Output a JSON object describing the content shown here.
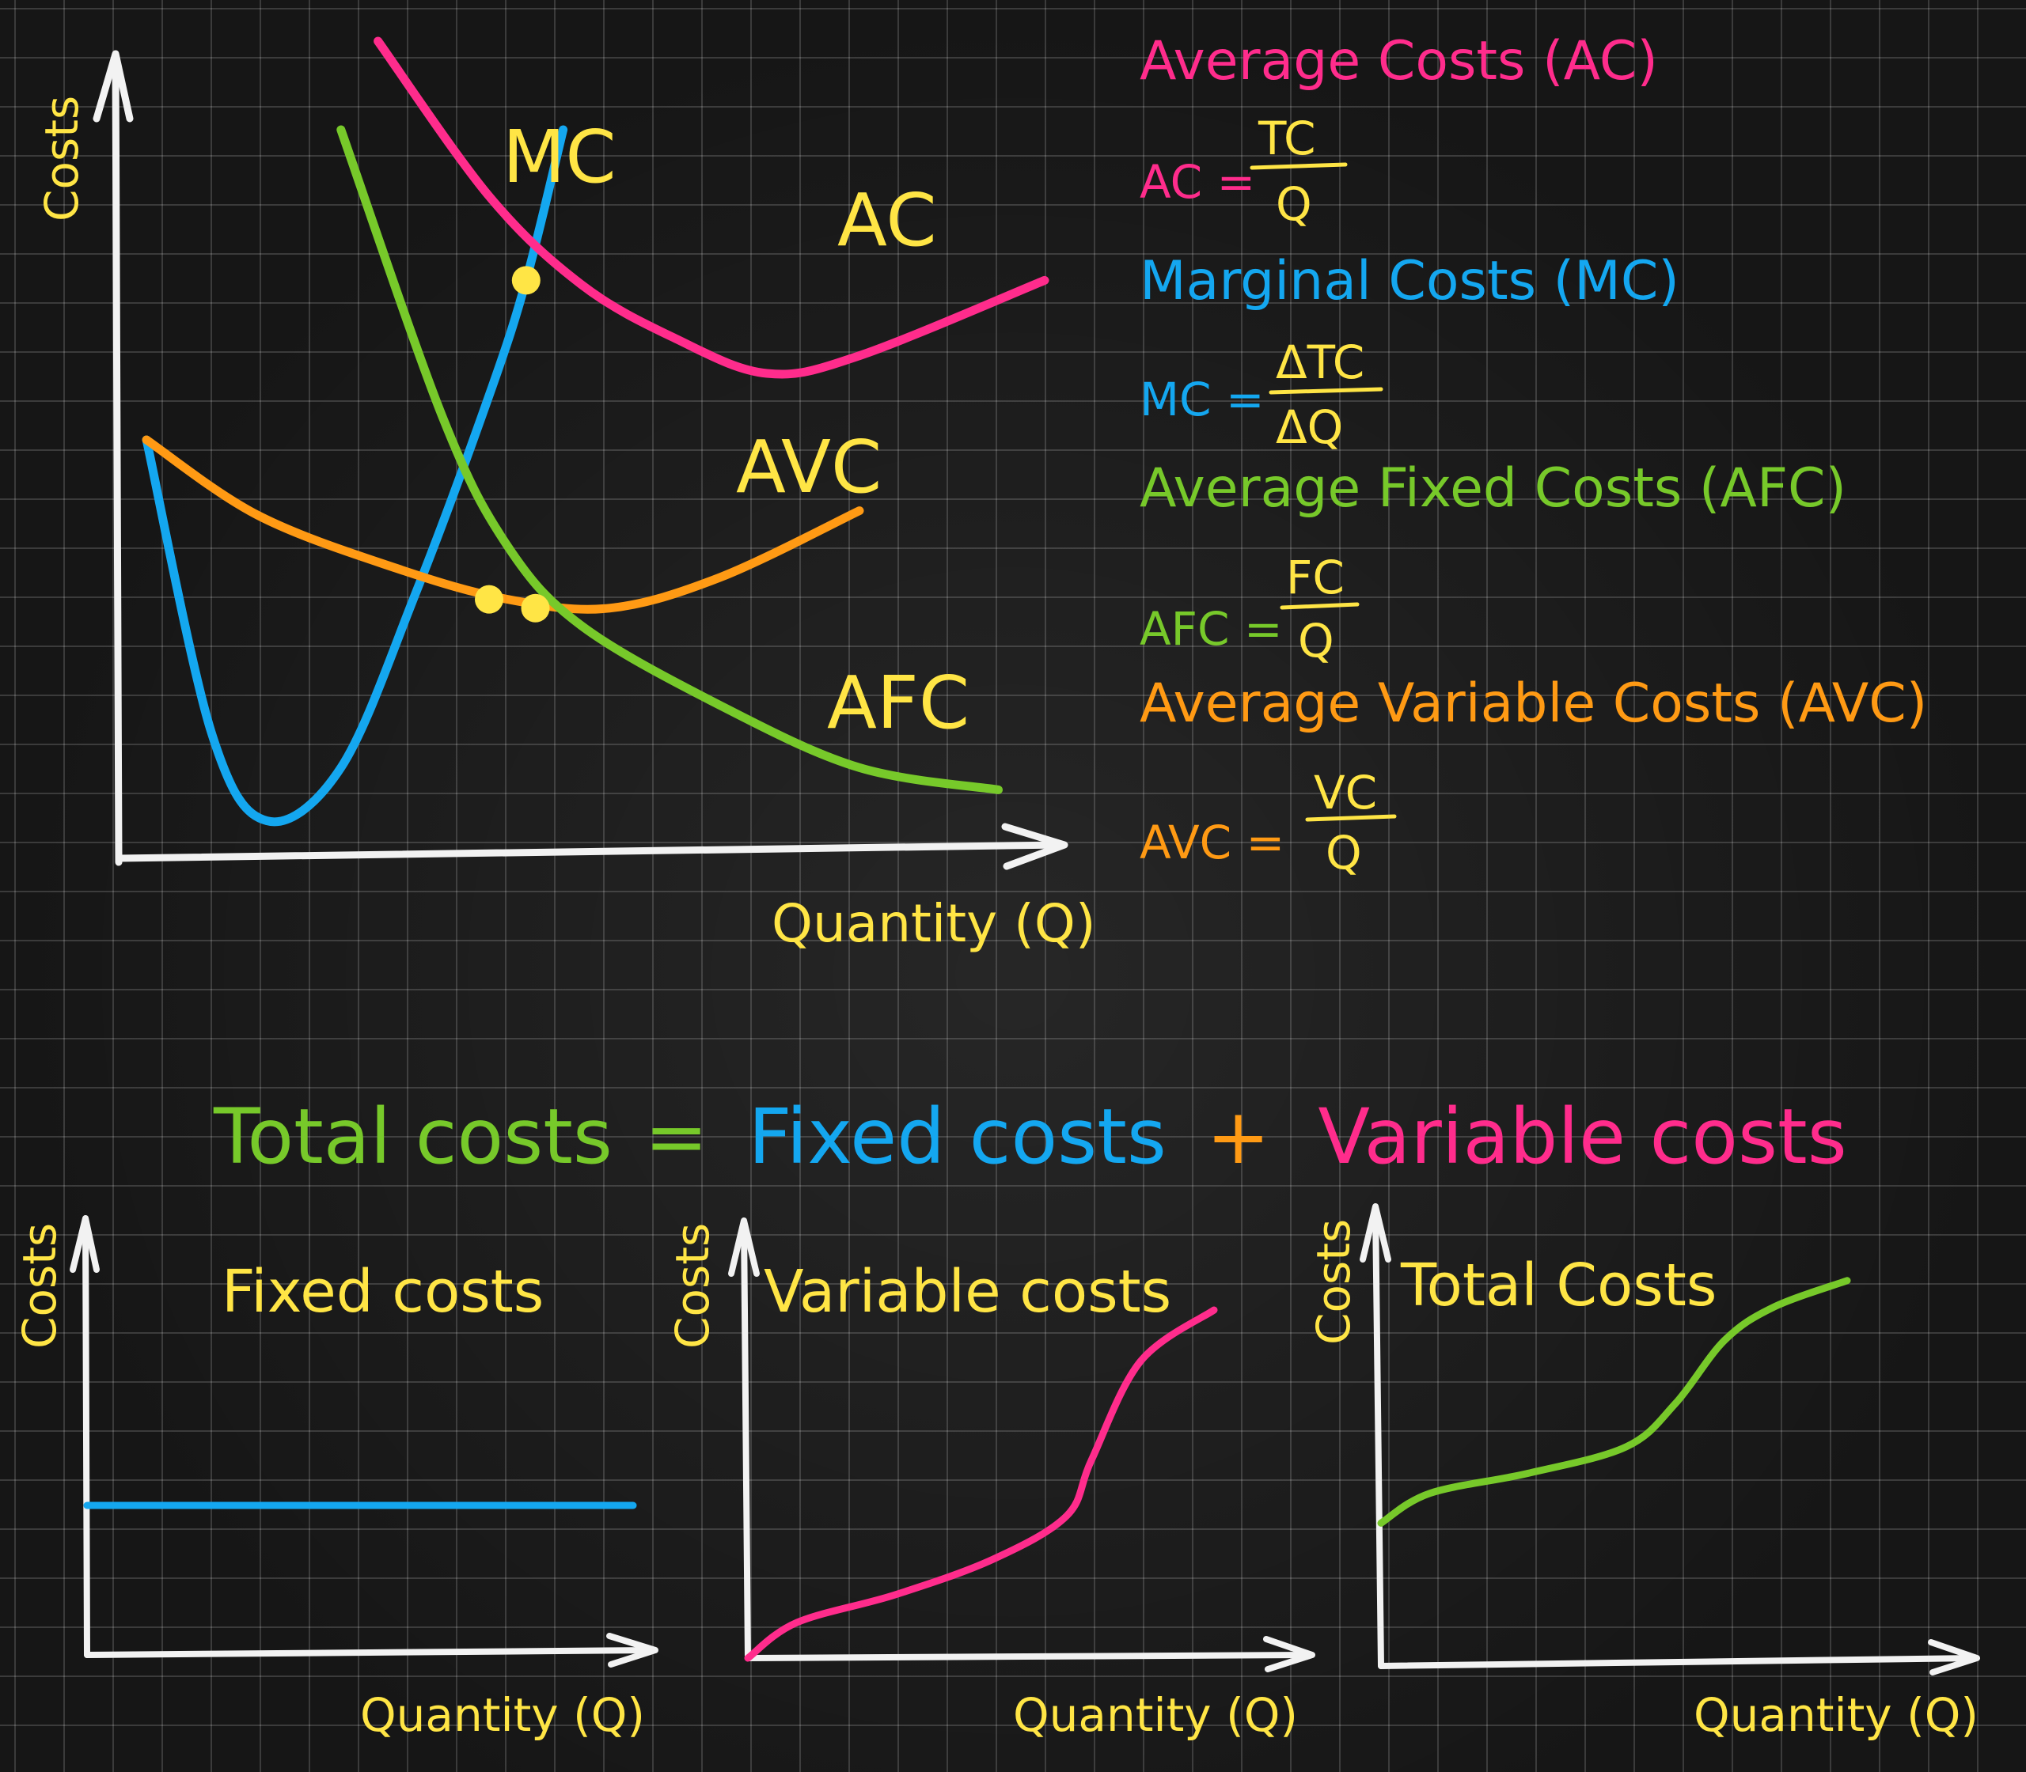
{
  "colors": {
    "axis": "#f2f2f2",
    "label_yellow": "#ffe545",
    "ac_pink": "#ff2c8c",
    "mc_blue": "#14a7f0",
    "afc_green": "#77c92a",
    "avc_orange": "#ff9a14",
    "intersection": "#ffe545"
  },
  "main_chart": {
    "y_axis_label": "Costs",
    "x_axis_label": "Quantity (Q)",
    "labels": {
      "mc": "MC",
      "ac": "AC",
      "avc": "AVC",
      "afc": "AFC"
    }
  },
  "definitions": {
    "ac": {
      "title": "Average Costs (AC)",
      "formula_lhs": "AC =",
      "numerator": "TC",
      "denominator": "Q"
    },
    "mc": {
      "title": "Marginal Costs (MC)",
      "formula_lhs": "MC =",
      "numerator": "ΔTC",
      "denominator": "ΔQ"
    },
    "afc": {
      "title": "Average Fixed Costs (AFC)",
      "formula_lhs": "AFC =",
      "numerator": "FC",
      "denominator": "Q"
    },
    "avc": {
      "title": "Average Variable Costs (AVC)",
      "formula_lhs": "AVC =",
      "numerator": "VC",
      "denominator": "Q"
    }
  },
  "equation": {
    "total": "Total costs",
    "equals": "=",
    "fixed": "Fixed costs",
    "plus": "+",
    "variable": "Variable costs"
  },
  "small_charts": [
    {
      "title": "Fixed costs",
      "y_axis_label": "Costs",
      "x_axis_label": "Quantity (Q)"
    },
    {
      "title": "Variable costs",
      "y_axis_label": "Costs",
      "x_axis_label": "Quantity (Q)"
    },
    {
      "title": "Total Costs",
      "y_axis_label": "Costs",
      "x_axis_label": "Quantity (Q)"
    }
  ],
  "chart_data": [
    {
      "type": "line",
      "series": [
        {
          "name": "MC",
          "points": [
            [
              0.3,
              9
            ],
            [
              1,
              2.4
            ],
            [
              1.6,
              0.4
            ],
            [
              2.4,
              1.6
            ],
            [
              3.2,
              5.5
            ],
            [
              4,
              10
            ],
            [
              4.4,
              12.6
            ],
            [
              4.8,
              16
            ]
          ]
        },
        {
          "name": "AC",
          "points": [
            [
              2.8,
              18
            ],
            [
              4,
              14.5
            ],
            [
              5,
              12.5
            ],
            [
              6,
              11.3
            ],
            [
              7,
              10.5
            ],
            [
              8,
              10.9
            ],
            [
              10,
              12.6
            ]
          ]
        },
        {
          "name": "AVC",
          "points": [
            [
              0.3,
              9
            ],
            [
              1.5,
              7.3
            ],
            [
              3,
              6.1
            ],
            [
              4.2,
              5.4
            ],
            [
              5.3,
              5.2
            ],
            [
              6.5,
              5.9
            ],
            [
              8,
              7.4
            ]
          ]
        },
        {
          "name": "AFC",
          "points": [
            [
              2.4,
              16
            ],
            [
              3.5,
              9.5
            ],
            [
              4.2,
              6.6
            ],
            [
              5,
              4.8
            ],
            [
              6.5,
              3
            ],
            [
              8,
              1.6
            ],
            [
              9.5,
              1.1
            ]
          ]
        }
      ],
      "intersections": [
        [
          4.4,
          12.6
        ],
        [
          4.0,
          5.4
        ],
        [
          4.5,
          5.2
        ]
      ]
    },
    {
      "type": "line",
      "series": [
        {
          "name": "Fixed costs",
          "points": [
            [
              0,
              4.5
            ],
            [
              10,
              4.5
            ]
          ]
        }
      ]
    },
    {
      "type": "line",
      "series": [
        {
          "name": "Variable costs",
          "points": [
            [
              0,
              0
            ],
            [
              1,
              0.9
            ],
            [
              3,
              1.6
            ],
            [
              5,
              2.5
            ],
            [
              6.5,
              3.6
            ],
            [
              7,
              5
            ],
            [
              8,
              7.5
            ],
            [
              9.5,
              8.8
            ]
          ]
        }
      ]
    },
    {
      "type": "line",
      "series": [
        {
          "name": "Total Costs",
          "points": [
            [
              0,
              4.3
            ],
            [
              1,
              5.2
            ],
            [
              3,
              5.8
            ],
            [
              5,
              6.6
            ],
            [
              6,
              7.9
            ],
            [
              7,
              9.8
            ],
            [
              8,
              10.8
            ],
            [
              9.5,
              11.6
            ]
          ]
        }
      ]
    }
  ]
}
